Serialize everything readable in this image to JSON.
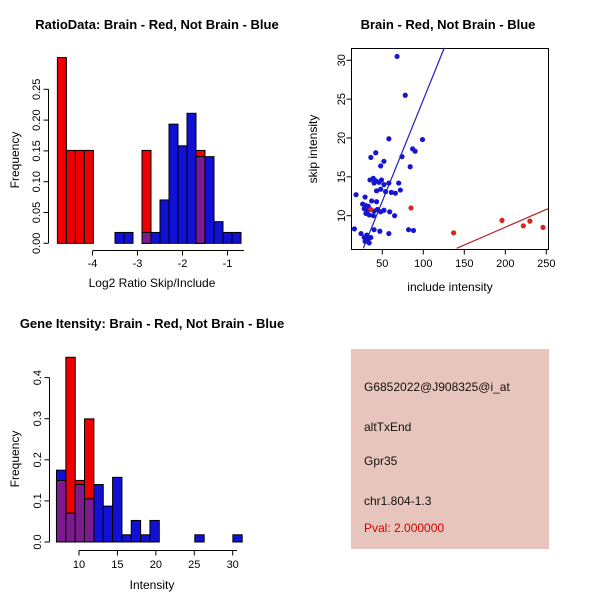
{
  "window": {
    "background": "#ffffff"
  },
  "colors": {
    "hist_red": "#ee0000",
    "hist_blue": "#1111d6",
    "overlap_purple": "#7c1b8d",
    "bar_stroke": "#000000",
    "dot_blue": "#1616cf",
    "dot_red": "#dd2222",
    "line_blue": "#2222bb",
    "line_red": "#bb2222",
    "axis": "#000000",
    "info_bg": "#e8c5bc",
    "pval_red": "#cc0000"
  },
  "chart_data": [
    {
      "id": "ratio_histogram",
      "type": "bar",
      "title": "RatioData: Brain - Red, Not Brain - Blue",
      "xlabel": "Log2 Ratio Skip/Include",
      "ylabel": "Frequency",
      "xlim": [
        -5.0,
        -0.5
      ],
      "ylim": [
        0,
        0.3
      ],
      "grid": false,
      "legend": "title encodes series colors",
      "bin_width": 0.2,
      "x_ticks": [
        {
          "v": -4,
          "label": "-4"
        },
        {
          "v": -3,
          "label": "-3"
        },
        {
          "v": -2,
          "label": "-2"
        },
        {
          "v": -1,
          "label": "-1"
        }
      ],
      "y_ticks": [
        {
          "v": 0,
          "label": "0.00"
        },
        {
          "v": 0.05,
          "label": "0.05"
        },
        {
          "v": 0.1,
          "label": "0.10"
        },
        {
          "v": 0.15,
          "label": "0.15"
        },
        {
          "v": 0.2,
          "label": "0.20"
        },
        {
          "v": 0.25,
          "label": "0.25"
        }
      ],
      "red_bins": [
        {
          "x": -4.78,
          "h": 0.2857
        },
        {
          "x": -4.58,
          "h": 0.1429
        },
        {
          "x": -4.38,
          "h": 0.1429
        },
        {
          "x": -4.18,
          "h": 0.1429
        },
        {
          "x": -2.9,
          "h": 0.1429
        },
        {
          "x": -1.7,
          "h": 0.1429
        }
      ],
      "blue_bins": [
        {
          "x": -3.5,
          "h": 0.0167
        },
        {
          "x": -3.3,
          "h": 0.0167
        },
        {
          "x": -2.9,
          "h": 0.0167
        },
        {
          "x": -2.7,
          "h": 0.0167
        },
        {
          "x": -2.5,
          "h": 0.0667
        },
        {
          "x": -2.3,
          "h": 0.1833
        },
        {
          "x": -2.1,
          "h": 0.15
        },
        {
          "x": -1.9,
          "h": 0.2
        },
        {
          "x": -1.7,
          "h": 0.1333
        },
        {
          "x": -1.5,
          "h": 0.1333
        },
        {
          "x": -1.3,
          "h": 0.0333
        },
        {
          "x": -1.1,
          "h": 0.0167
        },
        {
          "x": -0.9,
          "h": 0.0167
        }
      ]
    },
    {
      "id": "intensity_scatter",
      "type": "scatter",
      "title": "Brain - Red, Not Brain - Blue",
      "xlabel": "include intensity",
      "ylabel": "skip intensity",
      "xlim": [
        12,
        252
      ],
      "ylim": [
        5.7,
        31.6
      ],
      "grid": false,
      "x_ticks": [
        {
          "v": 50,
          "label": "50"
        },
        {
          "v": 100,
          "label": "100"
        },
        {
          "v": 150,
          "label": "150"
        },
        {
          "v": 200,
          "label": "200"
        },
        {
          "v": 250,
          "label": "250"
        }
      ],
      "y_ticks": [
        {
          "v": 10,
          "label": "10"
        },
        {
          "v": 15,
          "label": "15"
        },
        {
          "v": 20,
          "label": "20"
        },
        {
          "v": 25,
          "label": "25"
        },
        {
          "v": 30,
          "label": "30"
        }
      ],
      "blue_points": [
        [
          68,
          30.5
        ],
        [
          78,
          25.5
        ],
        [
          58,
          19.9
        ],
        [
          99,
          19.8
        ],
        [
          87,
          18.6
        ],
        [
          90,
          18.3
        ],
        [
          42,
          18.1
        ],
        [
          36,
          17.5
        ],
        [
          74,
          17.6
        ],
        [
          84,
          16.3
        ],
        [
          48,
          16.4
        ],
        [
          52,
          17.0
        ],
        [
          35,
          14.6
        ],
        [
          39,
          14.8
        ],
        [
          42,
          14.5
        ],
        [
          46,
          14.3
        ],
        [
          49,
          14.6
        ],
        [
          40,
          14.2
        ],
        [
          52,
          14.0
        ],
        [
          58,
          14.2
        ],
        [
          70,
          14.2
        ],
        [
          48,
          13.4
        ],
        [
          43,
          13.2
        ],
        [
          54,
          13.1
        ],
        [
          61,
          13.0
        ],
        [
          66,
          12.9
        ],
        [
          72,
          13.3
        ],
        [
          18,
          12.7
        ],
        [
          29,
          12.4
        ],
        [
          37,
          11.9
        ],
        [
          43,
          11.8
        ],
        [
          26,
          11.5
        ],
        [
          30,
          11.3
        ],
        [
          33,
          11.2
        ],
        [
          28,
          10.9
        ],
        [
          32,
          10.7
        ],
        [
          40,
          10.6
        ],
        [
          44,
          10.8
        ],
        [
          48,
          10.5
        ],
        [
          52,
          10.7
        ],
        [
          59,
          10.5
        ],
        [
          30,
          10.3
        ],
        [
          34,
          10.1
        ],
        [
          39,
          10.0
        ],
        [
          65,
          10.0
        ],
        [
          16,
          8.3
        ],
        [
          24,
          7.7
        ],
        [
          31,
          7.5
        ],
        [
          28,
          7.2
        ],
        [
          33,
          7.0
        ],
        [
          36,
          7.2
        ],
        [
          29,
          6.7
        ],
        [
          34,
          6.5
        ],
        [
          40,
          8.2
        ],
        [
          47,
          8.0
        ],
        [
          58,
          7.7
        ],
        [
          82,
          8.2
        ],
        [
          88,
          8.1
        ]
      ],
      "red_points": [
        [
          36,
          10.8
        ],
        [
          85,
          11.0
        ],
        [
          137,
          7.8
        ],
        [
          196,
          9.4
        ],
        [
          222,
          8.7
        ],
        [
          230,
          9.3
        ],
        [
          246,
          8.5
        ]
      ],
      "blue_line": [
        [
          26.8,
          5.8
        ],
        [
          125.6,
          31.6
        ]
      ],
      "red_line": [
        [
          140.7,
          5.8
        ],
        [
          252,
          10.9
        ]
      ]
    },
    {
      "id": "gene_intensity_histogram",
      "type": "bar",
      "title": "Gene Itensity: Brain - Red, Not Brain - Blue",
      "xlabel": "Intensity",
      "ylabel": "Frequency",
      "xlim": [
        6.5,
        32
      ],
      "ylim": [
        0,
        0.45
      ],
      "grid": false,
      "bin_width": 1.217,
      "x_ticks": [
        {
          "v": 10,
          "label": "10"
        },
        {
          "v": 15,
          "label": "15"
        },
        {
          "v": 20,
          "label": "20"
        },
        {
          "v": 25,
          "label": "25"
        },
        {
          "v": 30,
          "label": "30"
        }
      ],
      "y_ticks": [
        {
          "v": 0,
          "label": "0.0"
        },
        {
          "v": 0.1,
          "label": "0.1"
        },
        {
          "v": 0.2,
          "label": "0.2"
        },
        {
          "v": 0.3,
          "label": "0.3"
        },
        {
          "v": 0.4,
          "label": "0.4"
        }
      ],
      "red_bins": [
        {
          "x": 7.07,
          "h": 0.1429
        },
        {
          "x": 8.29,
          "h": 0.4286
        },
        {
          "x": 9.5,
          "h": 0.1429
        },
        {
          "x": 10.72,
          "h": 0.2857
        }
      ],
      "blue_bins": [
        {
          "x": 7.07,
          "h": 0.1667
        },
        {
          "x": 8.29,
          "h": 0.0667
        },
        {
          "x": 9.5,
          "h": 0.1333
        },
        {
          "x": 10.72,
          "h": 0.1
        },
        {
          "x": 11.94,
          "h": 0.1333
        },
        {
          "x": 13.15,
          "h": 0.0833
        },
        {
          "x": 14.37,
          "h": 0.15
        },
        {
          "x": 15.58,
          "h": 0.0167
        },
        {
          "x": 16.8,
          "h": 0.05
        },
        {
          "x": 18.02,
          "h": 0.0167
        },
        {
          "x": 19.23,
          "h": 0.05
        },
        {
          "x": 25.07,
          "h": 0.0167
        },
        {
          "x": 30.02,
          "h": 0.0167
        }
      ]
    }
  ],
  "info_panel": {
    "probe_id": "G6852022@J908325@i_at",
    "event_type": "altTxEnd",
    "gene": "Gpr35",
    "location": "chr1.804-1.3",
    "pval": "Pval: 2.000000"
  }
}
